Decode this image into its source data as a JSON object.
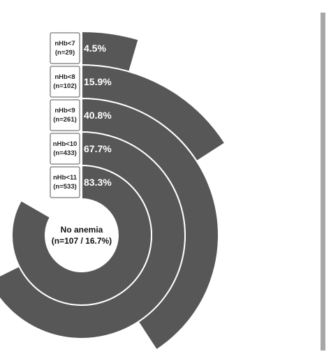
{
  "chart_data": {
    "type": "radial-bar",
    "series": [
      {
        "label": "nHb<7",
        "count": "(n=29)",
        "percent": 4.5,
        "percent_label": "4.5%"
      },
      {
        "label": "nHb<8",
        "count": "(n=102)",
        "percent": 15.9,
        "percent_label": "15.9%"
      },
      {
        "label": "nHb<9",
        "count": "(n=261)",
        "percent": 40.8,
        "percent_label": "40.8%"
      },
      {
        "label": "nHb<10",
        "count": "(n=433)",
        "percent": 67.7,
        "percent_label": "67.7%"
      },
      {
        "label": "nHb<11",
        "count": "(n=533)",
        "percent": 83.3,
        "percent_label": "83.3%"
      }
    ],
    "center": {
      "line1": "No anemia",
      "line2": "(n=107 / 16.7%)"
    },
    "colors": {
      "bar": "#575757",
      "separator": "#ffffff",
      "box_border": "#555555",
      "side_rule": "#a7a7a7"
    }
  }
}
